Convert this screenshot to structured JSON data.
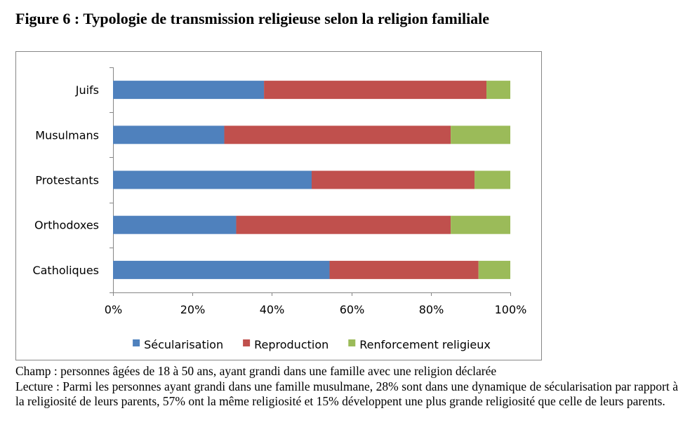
{
  "figure": {
    "title": "Figure 6 : Typologie de transmission religieuse selon la religion familiale"
  },
  "chart_data": {
    "type": "bar",
    "orientation": "horizontal",
    "stacked": true,
    "percent_stacked": true,
    "categories": [
      "Juifs",
      "Musulmans",
      "Protestants",
      "Orthodoxes",
      "Catholiques"
    ],
    "series": [
      {
        "name": "Sécularisation",
        "color": "#4F81BD",
        "values": [
          38,
          28,
          50,
          31,
          54.5
        ]
      },
      {
        "name": "Reproduction",
        "color": "#C0504D",
        "values": [
          56,
          57,
          41,
          54,
          37.5
        ]
      },
      {
        "name": "Renforcement religieux",
        "color": "#9BBB59",
        "values": [
          6,
          15,
          9,
          15,
          8
        ]
      }
    ],
    "x_ticks": [
      "0%",
      "20%",
      "40%",
      "60%",
      "80%",
      "100%"
    ],
    "xlim": [
      0,
      100
    ],
    "grid": false,
    "legend_position": "bottom",
    "xlabel": "",
    "ylabel": ""
  },
  "notes": {
    "champ": "Champ : personnes âgées de 18 à 50 ans, ayant grandi dans une famille avec une religion déclarée",
    "lecture": "Lecture : Parmi les personnes ayant grandi dans une famille musulmane, 28% sont dans une dynamique de sécularisation par rapport à la religiosité de leurs parents, 57% ont la même religiosité et 15% développent une plus grande religiosité que celle de leurs parents."
  }
}
